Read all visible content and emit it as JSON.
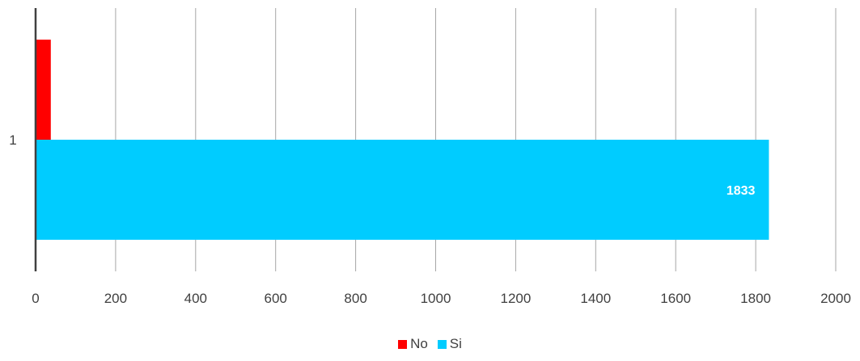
{
  "chart_data": {
    "type": "bar",
    "orientation": "horizontal",
    "categories": [
      "1"
    ],
    "series": [
      {
        "name": "No",
        "values": [
          38
        ],
        "color": "#ff0000",
        "data_label": ""
      },
      {
        "name": "Si",
        "values": [
          1833
        ],
        "color": "#00ccff",
        "data_label": "1833"
      }
    ],
    "xlim": [
      0,
      2000
    ],
    "x_ticks": [
      "0",
      "200",
      "400",
      "600",
      "800",
      "1000",
      "1200",
      "1400",
      "1600",
      "1800",
      "2000"
    ],
    "grid": true,
    "legend_position": "bottom"
  }
}
